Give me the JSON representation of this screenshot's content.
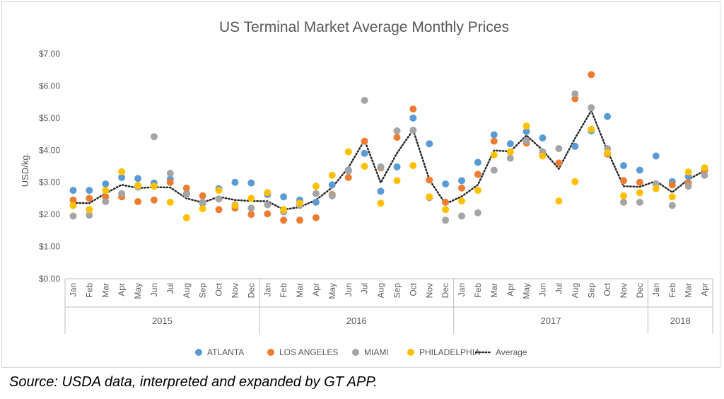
{
  "chart_data": {
    "type": "scatter",
    "title": "US Terminal Market  Average Monthly Prices",
    "ylabel": "USD/kg.",
    "xlabel": "",
    "ylim": [
      0,
      7
    ],
    "y_ticks": [
      "$0.00",
      "$1.00",
      "$2.00",
      "$3.00",
      "$4.00",
      "$5.00",
      "$6.00",
      "$7.00"
    ],
    "groups": [
      {
        "label": "2015",
        "months": [
          "Jan",
          "Feb",
          "Mar",
          "Apr",
          "May",
          "Jun",
          "Jul",
          "Aug",
          "Sep",
          "Oct",
          "Nov",
          "Dec"
        ]
      },
      {
        "label": "2016",
        "months": [
          "Jan",
          "Feb",
          "Mar",
          "Apr",
          "May",
          "Jun",
          "Jul",
          "Aug",
          "Sep",
          "Oct",
          "Nov",
          "Dec"
        ]
      },
      {
        "label": "2017",
        "months": [
          "Jan",
          "Feb",
          "Mar",
          "Apr",
          "May",
          "Jun",
          "Jul",
          "Aug",
          "Sep",
          "Oct",
          "Nov",
          "Dec"
        ]
      },
      {
        "label": "2018",
        "months": [
          "Jan",
          "Feb",
          "Mar",
          "Apr"
        ]
      }
    ],
    "grid": false,
    "legend_position": "bottom",
    "series": [
      {
        "name": "ATLANTA",
        "kind": "marker",
        "color": "#5b9bd5",
        "values": [
          2.75,
          2.75,
          2.95,
          3.15,
          3.12,
          2.98,
          3.1,
          2.65,
          2.35,
          2.8,
          3.0,
          2.98,
          2.62,
          2.55,
          2.45,
          2.38,
          2.92,
          3.38,
          3.9,
          2.72,
          3.48,
          5.0,
          4.2,
          2.95,
          3.05,
          3.62,
          4.48,
          4.2,
          4.58,
          4.38,
          3.6,
          4.12,
          4.6,
          5.05,
          3.52,
          3.38,
          3.82,
          3.02,
          3.18,
          3.38
        ]
      },
      {
        "name": "LOS ANGELES",
        "kind": "marker",
        "color": "#ed7d31",
        "values": [
          2.45,
          2.5,
          2.55,
          2.55,
          2.4,
          2.45,
          3.0,
          2.82,
          2.58,
          2.15,
          2.2,
          2.0,
          2.02,
          1.82,
          1.82,
          1.9,
          2.62,
          3.15,
          4.28,
          3.45,
          4.4,
          5.28,
          3.07,
          2.38,
          2.82,
          3.25,
          4.28,
          3.95,
          4.22,
          3.85,
          3.6,
          5.6,
          6.35,
          3.88,
          3.05,
          3.0,
          2.95,
          2.92,
          2.98,
          3.38
        ]
      },
      {
        "name": "MIAMI",
        "kind": "marker",
        "color": "#a5a5a5",
        "values": [
          1.95,
          1.98,
          2.4,
          2.65,
          2.85,
          4.42,
          3.28,
          2.62,
          2.38,
          2.48,
          2.3,
          2.2,
          2.3,
          2.08,
          2.28,
          2.65,
          2.58,
          3.35,
          5.55,
          3.48,
          4.6,
          4.62,
          2.52,
          1.82,
          1.95,
          2.05,
          3.38,
          3.75,
          4.3,
          3.95,
          4.05,
          5.75,
          5.32,
          4.05,
          2.38,
          2.38,
          2.95,
          2.28,
          2.88,
          3.22
        ]
      },
      {
        "name": "PHILADELPHIA",
        "kind": "marker",
        "color": "#ffc000",
        "values": [
          2.28,
          2.15,
          2.75,
          3.33,
          2.9,
          2.88,
          2.38,
          1.9,
          2.18,
          2.75,
          2.28,
          2.5,
          2.68,
          2.15,
          2.35,
          2.88,
          3.22,
          3.95,
          3.5,
          2.35,
          3.05,
          3.52,
          2.55,
          2.15,
          2.42,
          2.75,
          3.85,
          3.95,
          4.75,
          3.82,
          2.42,
          3.02,
          4.65,
          3.92,
          2.58,
          2.68,
          2.8,
          2.55,
          3.32,
          3.45
        ]
      },
      {
        "name": "Average",
        "kind": "line",
        "color": "#262626",
        "values": [
          2.36,
          2.35,
          2.66,
          2.92,
          2.82,
          2.85,
          2.84,
          2.5,
          2.37,
          2.55,
          2.45,
          2.42,
          2.41,
          2.15,
          2.23,
          2.45,
          2.84,
          3.46,
          4.31,
          2.99,
          3.91,
          4.63,
          3.08,
          2.33,
          2.56,
          2.92,
          3.99,
          3.96,
          4.46,
          4.0,
          3.42,
          4.37,
          5.23,
          3.98,
          2.88,
          2.86,
          3.04,
          2.69,
          3.09,
          3.36
        ]
      }
    ],
    "legend_entries": [
      {
        "name": "ATLANTA",
        "color": "#5b9bd5",
        "kind": "marker"
      },
      {
        "name": "LOS ANGELES",
        "color": "#ed7d31",
        "kind": "marker"
      },
      {
        "name": "MIAMI",
        "color": "#a5a5a5",
        "kind": "marker"
      },
      {
        "name": "PHILADELPHIA",
        "color": "#ffc000",
        "kind": "marker"
      },
      {
        "name": "Average",
        "color": "#262626",
        "kind": "line"
      }
    ]
  },
  "source_text": "Source: USDA data, interpreted and expanded by GT APP."
}
